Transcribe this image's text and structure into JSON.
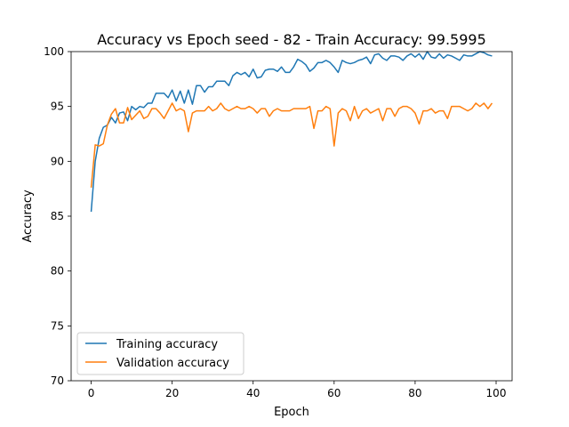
{
  "chart_data": {
    "type": "line",
    "title": "Accuracy vs Epoch seed - 82 - Train Accuracy: 99.5995",
    "xlabel": "Epoch",
    "ylabel": "Accuracy",
    "xlim": [
      -4.95,
      103.95
    ],
    "ylim": [
      70,
      100
    ],
    "xticks": [
      0,
      20,
      40,
      60,
      80,
      100
    ],
    "yticks": [
      70,
      75,
      80,
      85,
      90,
      95,
      100
    ],
    "grid": false,
    "legend_position": "lower-left",
    "series": [
      {
        "name": "Training accuracy",
        "color": "#1f77b4",
        "values": [
          85.4,
          90.0,
          92.1,
          93.1,
          93.3,
          94.0,
          93.5,
          94.4,
          94.5,
          93.7,
          95.0,
          94.7,
          95.0,
          94.9,
          95.3,
          95.3,
          96.2,
          96.2,
          96.2,
          95.8,
          96.5,
          95.5,
          96.4,
          95.3,
          96.5,
          95.2,
          96.9,
          96.9,
          96.3,
          96.8,
          96.8,
          97.3,
          97.3,
          97.3,
          96.9,
          97.8,
          98.1,
          97.9,
          98.1,
          97.7,
          98.4,
          97.6,
          97.7,
          98.3,
          98.4,
          98.4,
          98.2,
          98.6,
          98.1,
          98.1,
          98.6,
          99.3,
          99.1,
          98.8,
          98.2,
          98.5,
          99.0,
          99.0,
          99.2,
          99.0,
          98.6,
          98.1,
          99.2,
          99.0,
          98.9,
          99.0,
          99.2,
          99.3,
          99.5,
          98.9,
          99.7,
          99.8,
          99.4,
          99.2,
          99.6,
          99.6,
          99.5,
          99.2,
          99.6,
          99.8,
          99.5,
          99.8,
          99.3,
          100.0,
          99.5,
          99.4,
          99.8,
          99.4,
          99.7,
          99.6,
          99.4,
          99.2,
          99.7,
          99.6,
          99.6,
          99.8,
          100.0,
          99.9,
          99.7,
          99.6
        ]
      },
      {
        "name": "Validation accuracy",
        "color": "#ff7f0e",
        "values": [
          87.6,
          91.5,
          91.4,
          91.6,
          93.3,
          94.3,
          94.8,
          93.5,
          93.5,
          94.9,
          93.8,
          94.2,
          94.6,
          93.9,
          94.1,
          94.8,
          94.8,
          94.4,
          93.9,
          94.6,
          95.3,
          94.6,
          94.8,
          94.6,
          92.7,
          94.4,
          94.6,
          94.6,
          94.6,
          95.0,
          94.6,
          94.8,
          95.3,
          94.8,
          94.6,
          94.8,
          95.0,
          94.8,
          94.8,
          95.0,
          94.8,
          94.4,
          94.8,
          94.8,
          94.1,
          94.6,
          94.8,
          94.6,
          94.6,
          94.6,
          94.8,
          94.8,
          94.8,
          94.8,
          95.0,
          93.0,
          94.6,
          94.6,
          95.0,
          94.8,
          91.4,
          94.4,
          94.8,
          94.6,
          93.7,
          95.0,
          93.9,
          94.6,
          94.8,
          94.4,
          94.6,
          94.8,
          93.7,
          94.8,
          94.8,
          94.1,
          94.8,
          95.0,
          95.0,
          94.8,
          94.4,
          93.4,
          94.6,
          94.6,
          94.8,
          94.4,
          94.6,
          94.6,
          93.9,
          95.0,
          95.0,
          95.0,
          94.8,
          94.6,
          94.8,
          95.3,
          95.0,
          95.3,
          94.8,
          95.3
        ]
      }
    ]
  }
}
